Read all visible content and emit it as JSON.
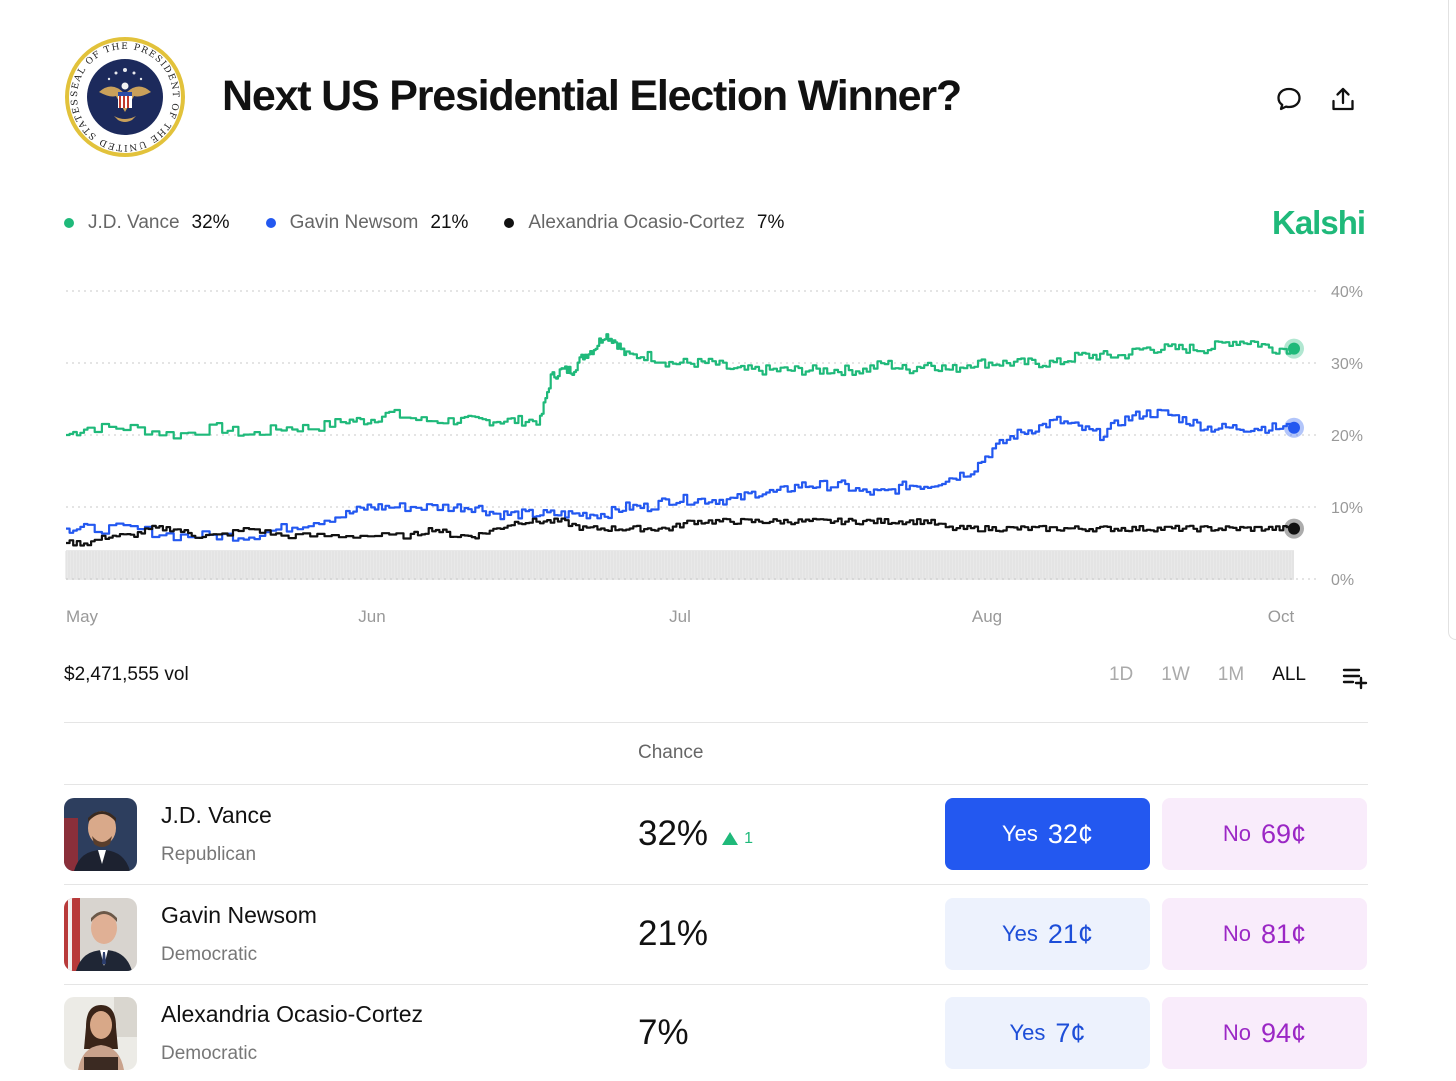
{
  "header": {
    "title": "Next US Presidential Election Winner?",
    "seal_text": "SEAL OF THE PRESIDENT OF THE UNITED STATES"
  },
  "legend": [
    {
      "name": "J.D. Vance",
      "pct": "32%",
      "color": "#1fb97a"
    },
    {
      "name": "Gavin Newsom",
      "pct": "21%",
      "color": "#2358f0"
    },
    {
      "name": "Alexandria Ocasio-Cortez",
      "pct": "7%",
      "color": "#111111"
    }
  ],
  "brand": "Kalshi",
  "chart_data": {
    "type": "line",
    "x_ticks": [
      "May",
      "Jun",
      "Jul",
      "Aug",
      "Oct"
    ],
    "y_ticks": [
      "40%",
      "30%",
      "20%",
      "10%",
      "0%"
    ],
    "ylim": [
      0,
      40
    ],
    "series": [
      {
        "name": "J.D. Vance",
        "color": "#1fb97a",
        "points": [
          [
            0,
            20
          ],
          [
            2,
            21
          ],
          [
            6,
            21
          ],
          [
            10,
            20
          ],
          [
            14,
            21
          ],
          [
            17,
            20
          ],
          [
            20,
            21
          ],
          [
            23,
            21
          ],
          [
            26,
            22
          ],
          [
            28,
            22
          ],
          [
            30,
            23
          ],
          [
            33,
            22
          ],
          [
            36,
            22
          ],
          [
            38,
            22
          ],
          [
            40,
            22
          ],
          [
            42,
            22
          ],
          [
            44,
            22
          ],
          [
            45,
            28
          ],
          [
            46,
            29
          ],
          [
            47,
            29
          ],
          [
            48,
            31
          ],
          [
            49,
            32
          ],
          [
            50,
            34
          ],
          [
            51,
            33
          ],
          [
            52,
            31
          ],
          [
            54,
            31
          ],
          [
            56,
            30
          ],
          [
            58,
            30
          ],
          [
            60,
            30
          ],
          [
            62,
            29
          ],
          [
            64,
            29
          ],
          [
            66,
            29
          ],
          [
            68,
            29
          ],
          [
            70,
            29
          ],
          [
            72,
            29
          ],
          [
            74,
            29
          ],
          [
            76,
            30
          ],
          [
            78,
            29
          ],
          [
            80,
            30
          ],
          [
            82,
            29
          ],
          [
            84,
            30
          ],
          [
            86,
            30
          ],
          [
            88,
            30
          ],
          [
            90,
            30
          ],
          [
            92,
            30
          ],
          [
            94,
            31
          ],
          [
            96,
            31
          ],
          [
            98,
            31
          ],
          [
            100,
            32
          ],
          [
            102,
            32
          ],
          [
            104,
            32
          ],
          [
            106,
            32
          ],
          [
            108,
            33
          ],
          [
            110,
            33
          ],
          [
            112,
            32
          ],
          [
            114,
            32
          ]
        ]
      },
      {
        "name": "Gavin Newsom",
        "color": "#2358f0",
        "points": [
          [
            0,
            7
          ],
          [
            2,
            7
          ],
          [
            6,
            7
          ],
          [
            10,
            6
          ],
          [
            14,
            6
          ],
          [
            17,
            6
          ],
          [
            20,
            7
          ],
          [
            23,
            8
          ],
          [
            26,
            9
          ],
          [
            28,
            10
          ],
          [
            30,
            10
          ],
          [
            33,
            10
          ],
          [
            36,
            10
          ],
          [
            38,
            10
          ],
          [
            40,
            9
          ],
          [
            42,
            9
          ],
          [
            44,
            9
          ],
          [
            46,
            9
          ],
          [
            48,
            9
          ],
          [
            50,
            9
          ],
          [
            52,
            10
          ],
          [
            54,
            10
          ],
          [
            56,
            11
          ],
          [
            58,
            11
          ],
          [
            60,
            11
          ],
          [
            62,
            11
          ],
          [
            64,
            12
          ],
          [
            66,
            12
          ],
          [
            68,
            13
          ],
          [
            70,
            13
          ],
          [
            72,
            13
          ],
          [
            74,
            12
          ],
          [
            76,
            12
          ],
          [
            78,
            13
          ],
          [
            80,
            13
          ],
          [
            82,
            14
          ],
          [
            84,
            15
          ],
          [
            86,
            18
          ],
          [
            88,
            20
          ],
          [
            90,
            21
          ],
          [
            92,
            22
          ],
          [
            94,
            21
          ],
          [
            96,
            20
          ],
          [
            98,
            22
          ],
          [
            100,
            23
          ],
          [
            102,
            23
          ],
          [
            104,
            22
          ],
          [
            106,
            21
          ],
          [
            108,
            21
          ],
          [
            110,
            21
          ],
          [
            112,
            21
          ],
          [
            114,
            21
          ]
        ]
      },
      {
        "name": "Alexandria Ocasio-Cortez",
        "color": "#111111",
        "points": [
          [
            0,
            5
          ],
          [
            2,
            5
          ],
          [
            4,
            6
          ],
          [
            6,
            6
          ],
          [
            8,
            7
          ],
          [
            10,
            7
          ],
          [
            12,
            6
          ],
          [
            14,
            6
          ],
          [
            17,
            7
          ],
          [
            20,
            6
          ],
          [
            24,
            6
          ],
          [
            28,
            6
          ],
          [
            32,
            6
          ],
          [
            34,
            7
          ],
          [
            36,
            6
          ],
          [
            38,
            6
          ],
          [
            40,
            7
          ],
          [
            42,
            8
          ],
          [
            44,
            8
          ],
          [
            46,
            8
          ],
          [
            48,
            7
          ],
          [
            50,
            7
          ],
          [
            52,
            7
          ],
          [
            54,
            7
          ],
          [
            56,
            7
          ],
          [
            58,
            8
          ],
          [
            60,
            8
          ],
          [
            62,
            8
          ],
          [
            64,
            8
          ],
          [
            66,
            8
          ],
          [
            68,
            8
          ],
          [
            70,
            8
          ],
          [
            72,
            8
          ],
          [
            74,
            8
          ],
          [
            76,
            8
          ],
          [
            78,
            8
          ],
          [
            80,
            8
          ],
          [
            82,
            7
          ],
          [
            84,
            7
          ],
          [
            86,
            7
          ],
          [
            88,
            7
          ],
          [
            90,
            7
          ],
          [
            92,
            7
          ],
          [
            94,
            7
          ],
          [
            96,
            7
          ],
          [
            98,
            7
          ],
          [
            100,
            7
          ],
          [
            102,
            7
          ],
          [
            104,
            7
          ],
          [
            106,
            7
          ],
          [
            108,
            7
          ],
          [
            110,
            7
          ],
          [
            112,
            7
          ],
          [
            114,
            7
          ]
        ]
      }
    ]
  },
  "stats": {
    "volume": "$2,471,555 vol",
    "ranges": [
      "1D",
      "1W",
      "1M",
      "ALL"
    ],
    "active_range": "ALL"
  },
  "table": {
    "col_chance": "Chance",
    "rows": [
      {
        "name": "J.D. Vance",
        "party": "Republican",
        "chance": "32%",
        "delta": "1",
        "yes_label": "Yes",
        "yes_price": "32¢",
        "no_label": "No",
        "no_price": "69¢",
        "yes_primary": true
      },
      {
        "name": "Gavin Newsom",
        "party": "Democratic",
        "chance": "21%",
        "delta": "",
        "yes_label": "Yes",
        "yes_price": "21¢",
        "no_label": "No",
        "no_price": "81¢",
        "yes_primary": false
      },
      {
        "name": "Alexandria Ocasio-Cortez",
        "party": "Democratic",
        "chance": "7%",
        "delta": "",
        "yes_label": "Yes",
        "yes_price": "7¢",
        "no_label": "No",
        "no_price": "94¢",
        "yes_primary": false
      }
    ]
  }
}
